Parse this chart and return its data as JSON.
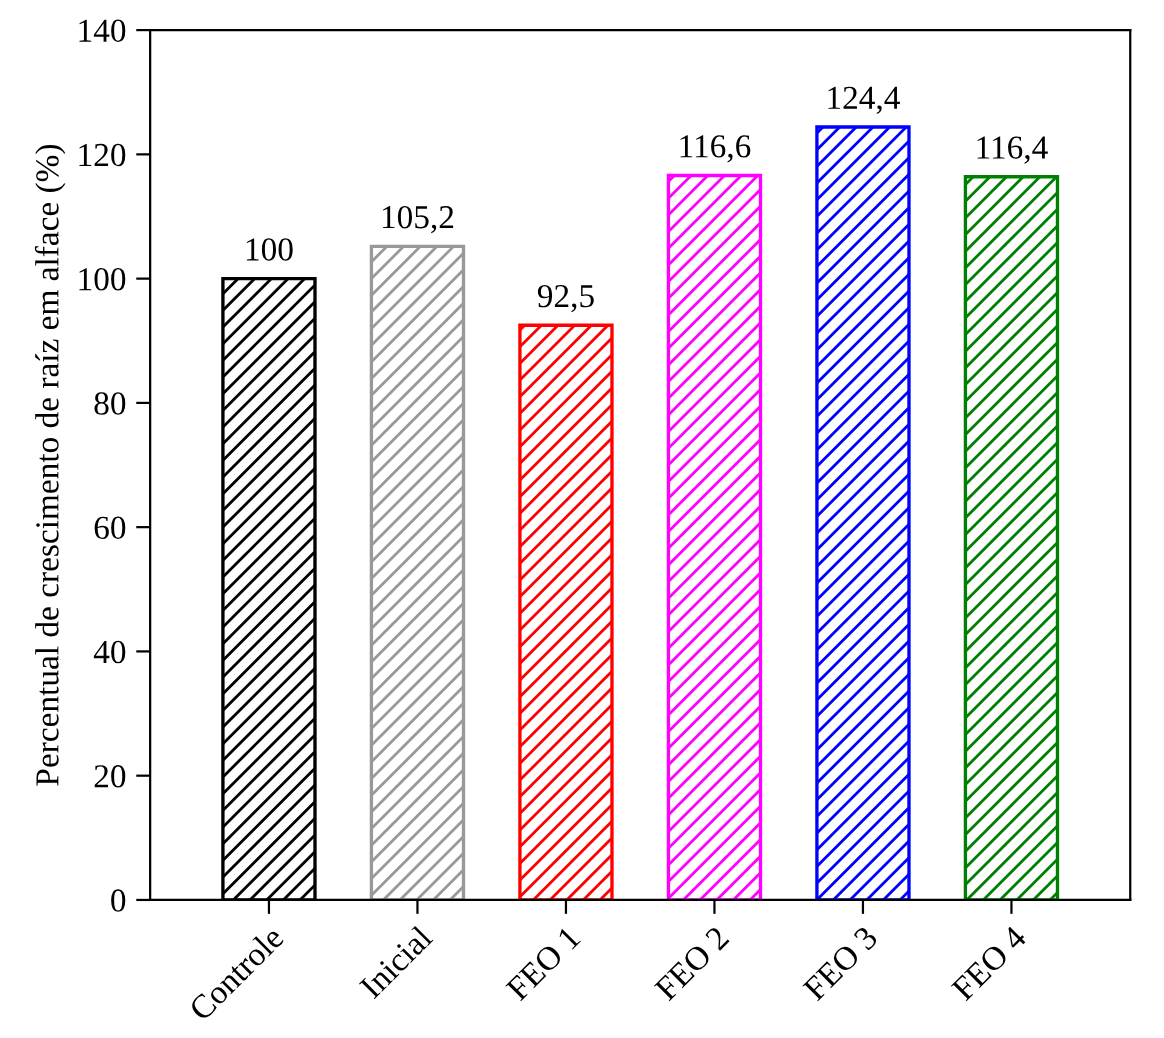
{
  "chart_data": {
    "type": "bar",
    "ylabel": "Percentual de crescimento de raíz em alface (%)",
    "categories": [
      "Controle",
      "Inicial",
      "FEO 1",
      "FEO 2",
      "FEO 3",
      "FEO 4"
    ],
    "values": [
      100,
      105.2,
      92.5,
      116.6,
      124.4,
      116.4
    ],
    "colors": [
      "#000000",
      "#999999",
      "#ff0000",
      "#ff00ff",
      "#0000ff",
      "#008000"
    ],
    "value_labels": [
      "100",
      "105,2",
      "92,5",
      "116,6",
      "124,4",
      "116,4"
    ],
    "ylim": [
      0,
      140
    ],
    "yticks": [
      0,
      20,
      40,
      60,
      80,
      100,
      120,
      140
    ],
    "grid": false,
    "legend": false
  }
}
